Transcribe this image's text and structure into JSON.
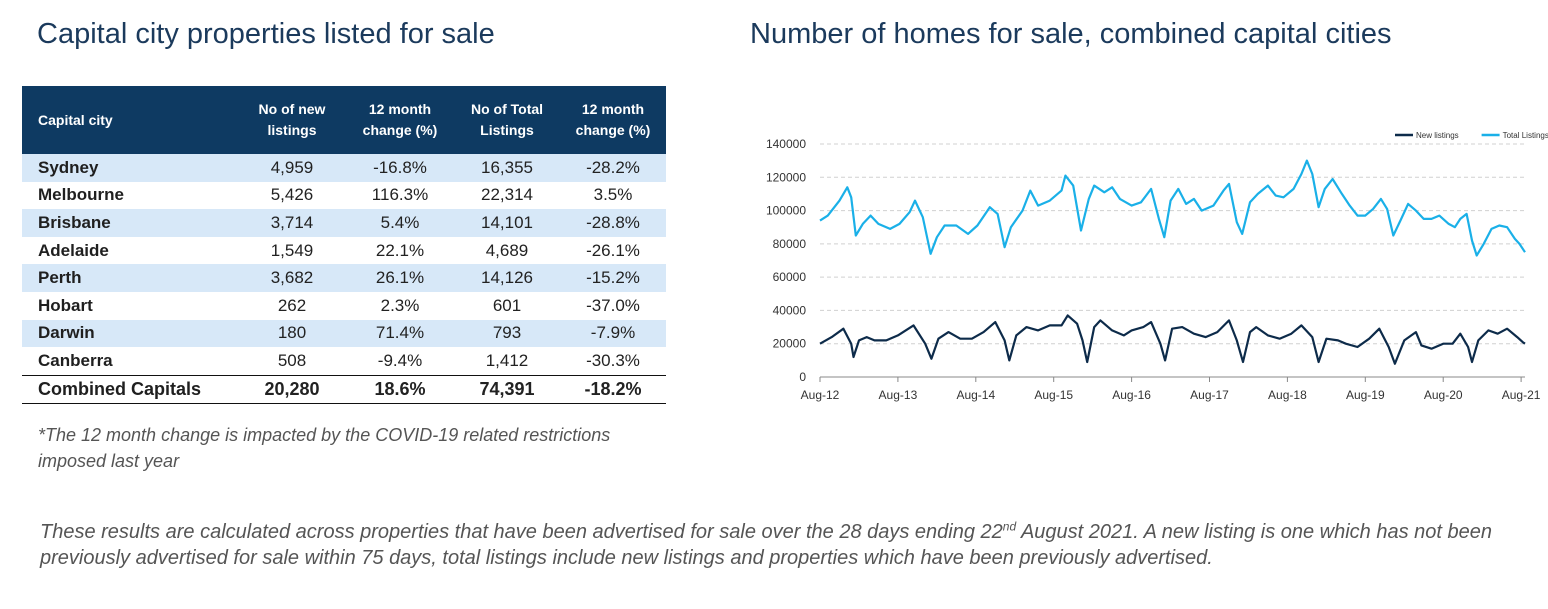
{
  "table_panel": {
    "title": "Capital city properties listed for sale",
    "headers": {
      "city": "Capital city",
      "new_line1": "No of new",
      "new_line2": "listings",
      "chg1_line1": "12 month",
      "chg1_line2": "change (%)",
      "total_line1": "No of Total",
      "total_line2": "Listings",
      "chg2_line1": "12 month",
      "chg2_line2": "change (%)"
    },
    "rows": [
      {
        "city": "Sydney",
        "new": "4,959",
        "new_chg": "-16.8%",
        "total": "16,355",
        "total_chg": "-28.2%"
      },
      {
        "city": "Melbourne",
        "new": "5,426",
        "new_chg": "116.3%",
        "total": "22,314",
        "total_chg": "3.5%"
      },
      {
        "city": "Brisbane",
        "new": "3,714",
        "new_chg": "5.4%",
        "total": "14,101",
        "total_chg": "-28.8%"
      },
      {
        "city": "Adelaide",
        "new": "1,549",
        "new_chg": "22.1%",
        "total": "4,689",
        "total_chg": "-26.1%"
      },
      {
        "city": "Perth",
        "new": "3,682",
        "new_chg": "26.1%",
        "total": "14,126",
        "total_chg": "-15.2%"
      },
      {
        "city": "Hobart",
        "new": "262",
        "new_chg": "2.3%",
        "total": "601",
        "total_chg": "-37.0%"
      },
      {
        "city": "Darwin",
        "new": "180",
        "new_chg": "71.4%",
        "total": "793",
        "total_chg": "-7.9%"
      },
      {
        "city": "Canberra",
        "new": "508",
        "new_chg": "-9.4%",
        "total": "1,412",
        "total_chg": "-30.3%"
      }
    ],
    "total_row": {
      "city": "Combined Capitals",
      "new": "20,280",
      "new_chg": "18.6%",
      "total": "74,391",
      "total_chg": "-18.2%"
    },
    "note_line1": "*The 12 month change is impacted by the COVID-19 related restrictions",
    "note_line2": "imposed last year"
  },
  "footnote": {
    "part1": "These results are calculated across properties that have been advertised for sale over the 28 days ending 22",
    "sup": "nd",
    "part2": " August 2021.  A new listing is one which has not been previously advertised for sale within 75 days, total listings include new listings and properties which have been previously advertised."
  },
  "chart_data": {
    "type": "line",
    "title": "Number of homes for sale, combined capital cities",
    "xlabel": "",
    "ylabel": "",
    "x_ticks": [
      "Aug-12",
      "Aug-13",
      "Aug-14",
      "Aug-15",
      "Aug-16",
      "Aug-17",
      "Aug-18",
      "Aug-19",
      "Aug-20",
      "Aug-21"
    ],
    "ylim": [
      0,
      140000
    ],
    "y_ticks": [
      0,
      20000,
      40000,
      60000,
      80000,
      100000,
      120000,
      140000
    ],
    "y_tick_labels": [
      "0",
      "20000",
      "40000",
      "60000",
      "80000",
      "100000",
      "120000",
      "140000"
    ],
    "grid": "horizontal dashed",
    "legend_position": "top-right",
    "series": [
      {
        "name": "New listings",
        "color": "#0d2b4a",
        "points": [
          [
            2012.6,
            20000
          ],
          [
            2012.75,
            24000
          ],
          [
            2012.9,
            29000
          ],
          [
            2013.0,
            20000
          ],
          [
            2013.03,
            12000
          ],
          [
            2013.1,
            22000
          ],
          [
            2013.2,
            24000
          ],
          [
            2013.3,
            22000
          ],
          [
            2013.45,
            22000
          ],
          [
            2013.6,
            25000
          ],
          [
            2013.8,
            31000
          ],
          [
            2013.95,
            20000
          ],
          [
            2014.03,
            11000
          ],
          [
            2014.12,
            23000
          ],
          [
            2014.25,
            27000
          ],
          [
            2014.4,
            23000
          ],
          [
            2014.55,
            23000
          ],
          [
            2014.7,
            27000
          ],
          [
            2014.85,
            33000
          ],
          [
            2014.97,
            22000
          ],
          [
            2015.03,
            10000
          ],
          [
            2015.12,
            25000
          ],
          [
            2015.25,
            30000
          ],
          [
            2015.4,
            28000
          ],
          [
            2015.55,
            31000
          ],
          [
            2015.7,
            31000
          ],
          [
            2015.78,
            37000
          ],
          [
            2015.9,
            32000
          ],
          [
            2015.97,
            22000
          ],
          [
            2016.03,
            9000
          ],
          [
            2016.12,
            30000
          ],
          [
            2016.2,
            34000
          ],
          [
            2016.35,
            28000
          ],
          [
            2016.5,
            25000
          ],
          [
            2016.6,
            28000
          ],
          [
            2016.75,
            30000
          ],
          [
            2016.85,
            33000
          ],
          [
            2016.97,
            20000
          ],
          [
            2017.03,
            10000
          ],
          [
            2017.12,
            29000
          ],
          [
            2017.25,
            30000
          ],
          [
            2017.4,
            26000
          ],
          [
            2017.55,
            24000
          ],
          [
            2017.7,
            27000
          ],
          [
            2017.85,
            34000
          ],
          [
            2017.95,
            22000
          ],
          [
            2018.03,
            9000
          ],
          [
            2018.12,
            27000
          ],
          [
            2018.2,
            30000
          ],
          [
            2018.35,
            25000
          ],
          [
            2018.5,
            23000
          ],
          [
            2018.65,
            26000
          ],
          [
            2018.78,
            31000
          ],
          [
            2018.92,
            24000
          ],
          [
            2019.0,
            9000
          ],
          [
            2019.1,
            23000
          ],
          [
            2019.25,
            22000
          ],
          [
            2019.35,
            20000
          ],
          [
            2019.5,
            18000
          ],
          [
            2019.65,
            23000
          ],
          [
            2019.78,
            29000
          ],
          [
            2019.9,
            18000
          ],
          [
            2019.98,
            8000
          ],
          [
            2020.1,
            22000
          ],
          [
            2020.25,
            27000
          ],
          [
            2020.32,
            19000
          ],
          [
            2020.45,
            17000
          ],
          [
            2020.6,
            20000
          ],
          [
            2020.72,
            20000
          ],
          [
            2020.82,
            26000
          ],
          [
            2020.92,
            18000
          ],
          [
            2020.97,
            9000
          ],
          [
            2021.05,
            22000
          ],
          [
            2021.18,
            28000
          ],
          [
            2021.3,
            26000
          ],
          [
            2021.42,
            29000
          ],
          [
            2021.55,
            24000
          ],
          [
            2021.62,
            21000
          ],
          [
            2021.65,
            20000
          ]
        ]
      },
      {
        "name": "Total Listings",
        "color": "#1ab0e8",
        "points": [
          [
            2012.6,
            94000
          ],
          [
            2012.7,
            97000
          ],
          [
            2012.85,
            106000
          ],
          [
            2012.95,
            114000
          ],
          [
            2013.0,
            108000
          ],
          [
            2013.06,
            85000
          ],
          [
            2013.15,
            92000
          ],
          [
            2013.25,
            97000
          ],
          [
            2013.35,
            92000
          ],
          [
            2013.5,
            89000
          ],
          [
            2013.62,
            92000
          ],
          [
            2013.75,
            99000
          ],
          [
            2013.82,
            106000
          ],
          [
            2013.92,
            96000
          ],
          [
            2014.02,
            74000
          ],
          [
            2014.1,
            84000
          ],
          [
            2014.2,
            91000
          ],
          [
            2014.35,
            91000
          ],
          [
            2014.5,
            86000
          ],
          [
            2014.62,
            91000
          ],
          [
            2014.78,
            102000
          ],
          [
            2014.88,
            98000
          ],
          [
            2014.97,
            78000
          ],
          [
            2015.05,
            90000
          ],
          [
            2015.2,
            100000
          ],
          [
            2015.3,
            112000
          ],
          [
            2015.4,
            103000
          ],
          [
            2015.55,
            106000
          ],
          [
            2015.7,
            112000
          ],
          [
            2015.75,
            121000
          ],
          [
            2015.85,
            115000
          ],
          [
            2015.95,
            88000
          ],
          [
            2016.05,
            107000
          ],
          [
            2016.12,
            115000
          ],
          [
            2016.25,
            111000
          ],
          [
            2016.35,
            114000
          ],
          [
            2016.45,
            107000
          ],
          [
            2016.6,
            103000
          ],
          [
            2016.72,
            105000
          ],
          [
            2016.85,
            113000
          ],
          [
            2016.95,
            95000
          ],
          [
            2017.02,
            84000
          ],
          [
            2017.1,
            106000
          ],
          [
            2017.2,
            113000
          ],
          [
            2017.3,
            104000
          ],
          [
            2017.4,
            107000
          ],
          [
            2017.5,
            100000
          ],
          [
            2017.65,
            103000
          ],
          [
            2017.78,
            112000
          ],
          [
            2017.85,
            116000
          ],
          [
            2017.95,
            93000
          ],
          [
            2018.02,
            86000
          ],
          [
            2018.12,
            105000
          ],
          [
            2018.22,
            110000
          ],
          [
            2018.35,
            115000
          ],
          [
            2018.45,
            109000
          ],
          [
            2018.55,
            108000
          ],
          [
            2018.68,
            113000
          ],
          [
            2018.78,
            122000
          ],
          [
            2018.85,
            130000
          ],
          [
            2018.92,
            122000
          ],
          [
            2019.0,
            102000
          ],
          [
            2019.08,
            113000
          ],
          [
            2019.18,
            119000
          ],
          [
            2019.3,
            110000
          ],
          [
            2019.4,
            103000
          ],
          [
            2019.5,
            97000
          ],
          [
            2019.6,
            97000
          ],
          [
            2019.7,
            101000
          ],
          [
            2019.8,
            107000
          ],
          [
            2019.88,
            101000
          ],
          [
            2019.96,
            85000
          ],
          [
            2020.05,
            94000
          ],
          [
            2020.15,
            104000
          ],
          [
            2020.25,
            100000
          ],
          [
            2020.35,
            95000
          ],
          [
            2020.45,
            95000
          ],
          [
            2020.55,
            97000
          ],
          [
            2020.67,
            92000
          ],
          [
            2020.75,
            90000
          ],
          [
            2020.82,
            95000
          ],
          [
            2020.9,
            98000
          ],
          [
            2020.97,
            82000
          ],
          [
            2021.03,
            73000
          ],
          [
            2021.12,
            80000
          ],
          [
            2021.22,
            89000
          ],
          [
            2021.32,
            91000
          ],
          [
            2021.42,
            90000
          ],
          [
            2021.52,
            83000
          ],
          [
            2021.58,
            80000
          ],
          [
            2021.65,
            75000
          ]
        ]
      }
    ]
  }
}
